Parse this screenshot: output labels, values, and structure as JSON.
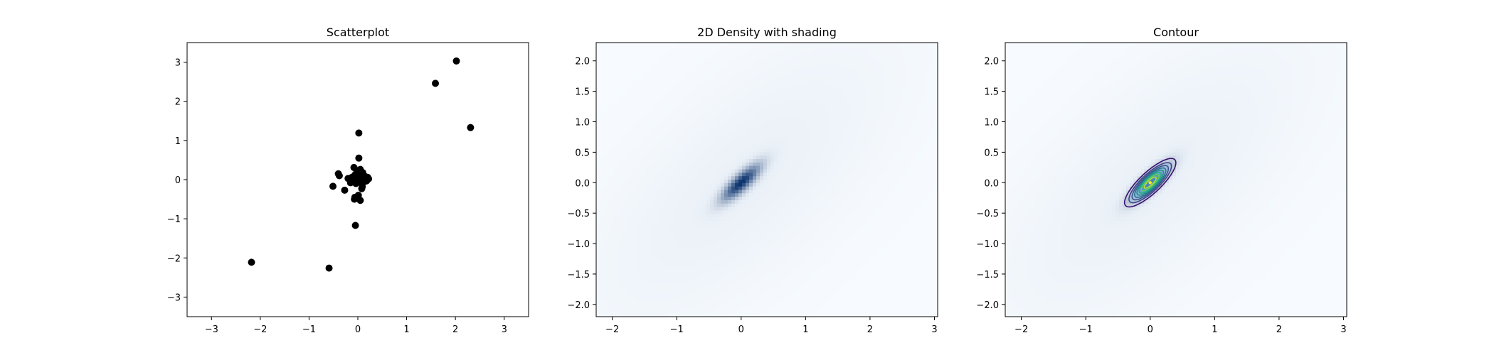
{
  "chart_data": [
    {
      "type": "scatter",
      "title": "Scatterplot",
      "xlabel": "",
      "ylabel": "",
      "xlim": [
        -3.5,
        3.5
      ],
      "ylim": [
        -3.5,
        3.5
      ],
      "xticks": [
        -3,
        -2,
        -1,
        0,
        1,
        2,
        3
      ],
      "yticks": [
        -3,
        -2,
        -1,
        0,
        1,
        2,
        3
      ],
      "grid": false,
      "marker_color": "#000000",
      "points": [
        [
          -2.18,
          -2.11
        ],
        [
          -0.59,
          -2.26
        ],
        [
          -0.05,
          -1.17
        ],
        [
          1.59,
          2.46
        ],
        [
          2.02,
          3.03
        ],
        [
          2.31,
          1.33
        ],
        [
          0.02,
          1.19
        ],
        [
          0.02,
          0.55
        ],
        [
          -0.51,
          -0.17
        ],
        [
          -0.4,
          0.15
        ],
        [
          -0.38,
          0.1
        ],
        [
          -0.27,
          -0.27
        ],
        [
          -0.2,
          0.03
        ],
        [
          -0.15,
          -0.08
        ],
        [
          -0.12,
          0.06
        ],
        [
          -0.1,
          -0.02
        ],
        [
          -0.08,
          0.31
        ],
        [
          -0.06,
          0.12
        ],
        [
          -0.05,
          0.0
        ],
        [
          -0.04,
          -0.1
        ],
        [
          -0.02,
          0.2
        ],
        [
          -0.01,
          0.07
        ],
        [
          0.0,
          -0.05
        ],
        [
          0.02,
          0.15
        ],
        [
          0.03,
          0.03
        ],
        [
          0.05,
          0.26
        ],
        [
          0.06,
          -0.02
        ],
        [
          0.07,
          0.1
        ],
        [
          0.09,
          -0.18
        ],
        [
          0.1,
          0.18
        ],
        [
          0.12,
          0.05
        ],
        [
          0.14,
          -0.05
        ],
        [
          0.15,
          0.08
        ],
        [
          0.18,
          -0.03
        ],
        [
          0.2,
          0.06
        ],
        [
          0.22,
          0.02
        ],
        [
          0.08,
          -0.23
        ],
        [
          -0.06,
          -0.45
        ],
        [
          0.01,
          -0.4
        ],
        [
          -0.07,
          -0.5
        ],
        [
          0.05,
          -0.53
        ],
        [
          0.11,
          0.12
        ]
      ]
    },
    {
      "type": "heatmap",
      "title": "2D Density with shading",
      "xlabel": "",
      "ylabel": "",
      "xlim": [
        -2.25,
        3.05
      ],
      "ylim": [
        -2.2,
        2.3
      ],
      "xticks": [
        -2,
        -1,
        0,
        1,
        2,
        3
      ],
      "yticks": [
        -2.0,
        -1.5,
        -1.0,
        -0.5,
        0.0,
        0.5,
        1.0,
        1.5,
        2.0
      ],
      "ytick_labels": [
        "−2.0",
        "−1.5",
        "−1.0",
        "−0.5",
        "0.0",
        "0.5",
        "1.0",
        "1.5",
        "2.0"
      ],
      "colormap": "Blues",
      "colormap_low": "#f7fbff",
      "colormap_high": "#08306b",
      "density_peak": [
        0.0,
        0.0
      ],
      "density_orientation": "positive correlation, elongated along y = x"
    },
    {
      "type": "contour",
      "title": "Contour",
      "xlabel": "",
      "ylabel": "",
      "xlim": [
        -2.25,
        3.05
      ],
      "ylim": [
        -2.2,
        2.3
      ],
      "xticks": [
        -2,
        -1,
        0,
        1,
        2,
        3
      ],
      "yticks": [
        -2.0,
        -1.5,
        -1.0,
        -0.5,
        0.0,
        0.5,
        1.0,
        1.5,
        2.0
      ],
      "ytick_labels": [
        "−2.0",
        "−1.5",
        "−1.0",
        "−0.5",
        "0.0",
        "0.5",
        "1.0",
        "1.5",
        "2.0"
      ],
      "background_colormap": "Blues",
      "contour_colormap": "viridis",
      "contour_levels": 8,
      "contour_colors": [
        "#3b0f70",
        "#414487",
        "#3b528b",
        "#2c728e",
        "#21918c",
        "#28ae80",
        "#5ec962",
        "#b5de2b",
        "#fde725"
      ],
      "density_peak": [
        0.0,
        0.0
      ]
    }
  ]
}
